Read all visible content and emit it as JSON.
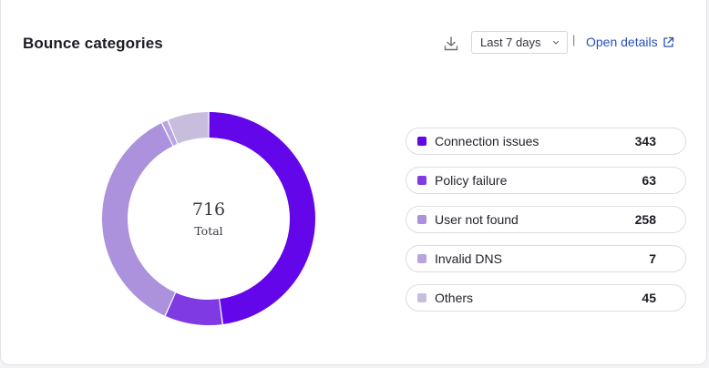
{
  "header": {
    "title": "Bounce categories",
    "date_range": "Last 7 days",
    "separator": "|",
    "open_details": "Open details"
  },
  "colors": {
    "connection": "#6406ea",
    "policy": "#7f3ae4",
    "user_not_found": "#ac91dd",
    "invalid_dns": "#b8a5df",
    "others": "#c8bddd",
    "link": "#2a4fb5"
  },
  "chart_data": {
    "type": "pie",
    "center_value": "716",
    "center_label": "Total",
    "categories": [
      "Connection issues",
      "Policy failure",
      "User not found",
      "Invalid DNS",
      "Others"
    ],
    "values": [
      343,
      63,
      258,
      7,
      45
    ],
    "colors": [
      "#6406ea",
      "#7f3ae4",
      "#ac91dd",
      "#b8a5df",
      "#c8bddd"
    ]
  }
}
